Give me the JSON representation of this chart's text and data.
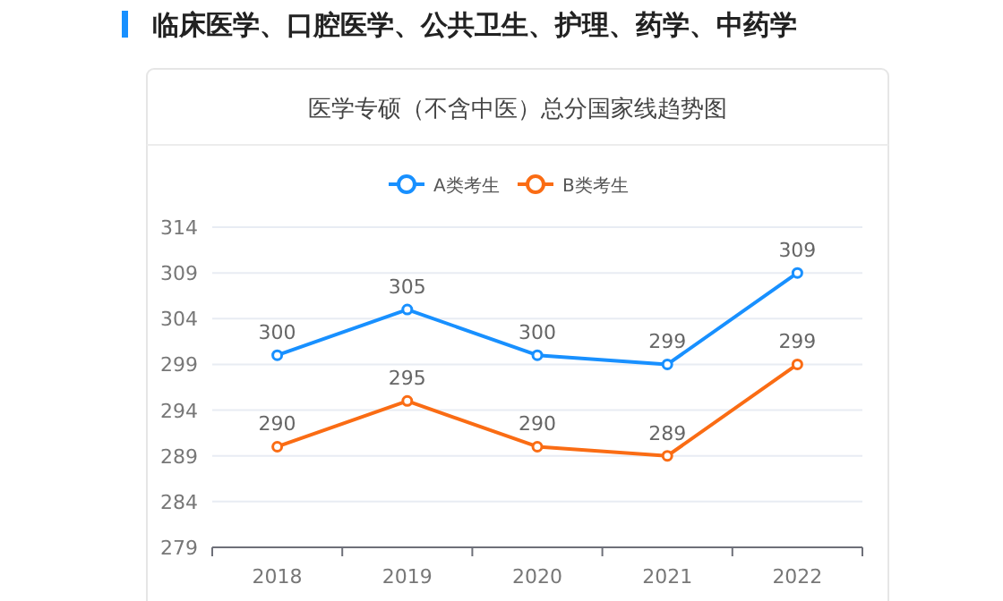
{
  "chart_data": {
    "type": "line",
    "title": "临床医学、口腔医学、公共卫生、护理、药学、中药学",
    "subtitle": "医学专硕（不含中医）总分国家线趋势图",
    "categories": [
      "2018",
      "2019",
      "2020",
      "2021",
      "2022"
    ],
    "series": [
      {
        "name": "A类考生",
        "color": "#1890ff",
        "values": [
          300,
          305,
          300,
          299,
          309
        ]
      },
      {
        "name": "B类考生",
        "color": "#fa6c14",
        "values": [
          290,
          295,
          290,
          289,
          299
        ]
      }
    ],
    "ylim": [
      279,
      314
    ],
    "yticks": [
      279,
      284,
      289,
      294,
      299,
      304,
      309,
      314
    ],
    "grid": "y",
    "legend": "top",
    "marker": "circle",
    "line_style": "solid",
    "data_labels": true
  }
}
